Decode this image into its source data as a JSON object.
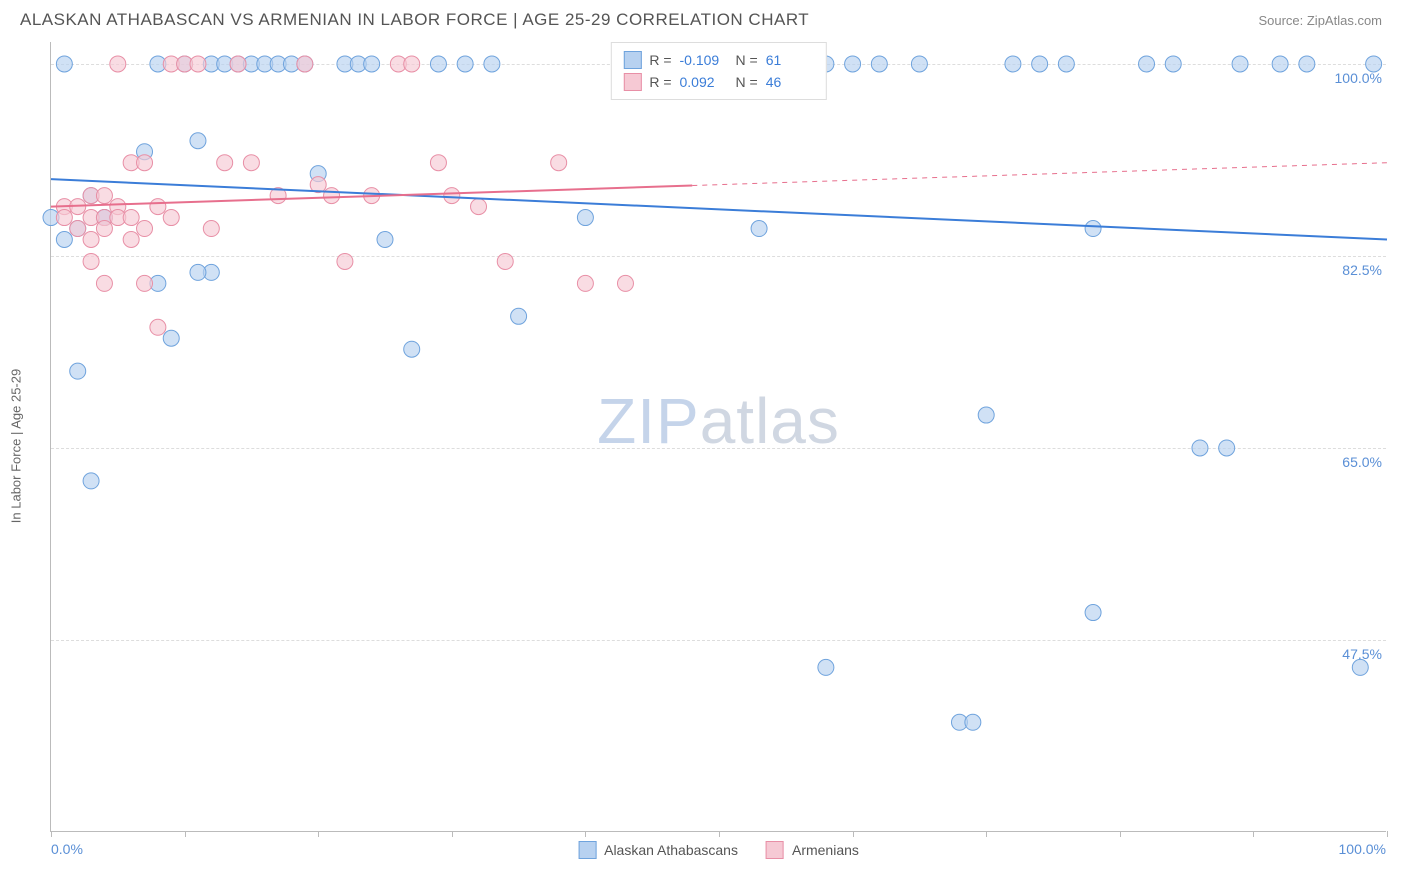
{
  "header": {
    "title": "ALASKAN ATHABASCAN VS ARMENIAN IN LABOR FORCE | AGE 25-29 CORRELATION CHART",
    "source": "Source: ZipAtlas.com"
  },
  "axes": {
    "y_title": "In Labor Force | Age 25-29",
    "x_min_label": "0.0%",
    "x_max_label": "100.0%",
    "xlim": [
      0,
      100
    ],
    "ylim": [
      30,
      102
    ],
    "y_gridlines": [
      47.5,
      65.0,
      82.5,
      100.0
    ],
    "y_grid_labels": [
      "47.5%",
      "65.0%",
      "82.5%",
      "100.0%"
    ],
    "x_ticks": [
      0,
      10,
      20,
      30,
      40,
      50,
      60,
      70,
      80,
      90,
      100
    ]
  },
  "watermark": {
    "pre": "ZIP",
    "post": "atlas"
  },
  "series": [
    {
      "name": "Alaskan Athabascans",
      "color_fill": "#b7d1f0",
      "color_stroke": "#6fa3dd",
      "R": "-0.109",
      "N": "61",
      "trend": {
        "x1": 0,
        "y1": 89.5,
        "x2": 100,
        "y2": 84.0,
        "solid_until": 100
      },
      "points": [
        [
          0,
          86
        ],
        [
          1,
          84
        ],
        [
          2,
          85
        ],
        [
          2,
          72
        ],
        [
          3,
          62
        ],
        [
          4,
          86
        ],
        [
          1,
          100
        ],
        [
          3,
          88
        ],
        [
          4,
          86
        ],
        [
          7,
          92
        ],
        [
          10,
          100
        ],
        [
          12,
          81
        ],
        [
          12,
          100
        ],
        [
          11,
          81
        ],
        [
          11,
          93
        ],
        [
          8,
          100
        ],
        [
          8,
          80
        ],
        [
          9,
          75
        ],
        [
          13,
          100
        ],
        [
          14,
          100
        ],
        [
          15,
          100
        ],
        [
          16,
          100
        ],
        [
          17,
          100
        ],
        [
          18,
          100
        ],
        [
          19,
          100
        ],
        [
          20,
          90
        ],
        [
          22,
          100
        ],
        [
          23,
          100
        ],
        [
          24,
          100
        ],
        [
          25,
          84
        ],
        [
          27,
          74
        ],
        [
          29,
          100
        ],
        [
          31,
          100
        ],
        [
          33,
          100
        ],
        [
          35,
          77
        ],
        [
          40,
          86
        ],
        [
          52,
          100
        ],
        [
          53,
          85
        ],
        [
          56,
          100
        ],
        [
          58,
          100
        ],
        [
          60,
          100
        ],
        [
          58,
          45
        ],
        [
          62,
          100
        ],
        [
          65,
          100
        ],
        [
          68,
          40
        ],
        [
          69,
          40
        ],
        [
          70,
          68
        ],
        [
          72,
          100
        ],
        [
          74,
          100
        ],
        [
          76,
          100
        ],
        [
          78,
          85
        ],
        [
          78,
          50
        ],
        [
          82,
          100
        ],
        [
          84,
          100
        ],
        [
          86,
          65
        ],
        [
          88,
          65
        ],
        [
          89,
          100
        ],
        [
          92,
          100
        ],
        [
          94,
          100
        ],
        [
          98,
          45
        ],
        [
          99,
          100
        ]
      ]
    },
    {
      "name": "Armenians",
      "color_fill": "#f6c9d4",
      "color_stroke": "#e88fa6",
      "R": "0.092",
      "N": "46",
      "trend": {
        "x1": 0,
        "y1": 87.0,
        "x2": 100,
        "y2": 91.0,
        "solid_until": 48
      },
      "points": [
        [
          1,
          87
        ],
        [
          1,
          86
        ],
        [
          2,
          87
        ],
        [
          2,
          85
        ],
        [
          3,
          88
        ],
        [
          3,
          86
        ],
        [
          3,
          84
        ],
        [
          3,
          82
        ],
        [
          4,
          88
        ],
        [
          4,
          86
        ],
        [
          4,
          85
        ],
        [
          4,
          80
        ],
        [
          5,
          87
        ],
        [
          5,
          86
        ],
        [
          5,
          100
        ],
        [
          6,
          91
        ],
        [
          6,
          86
        ],
        [
          6,
          84
        ],
        [
          7,
          91
        ],
        [
          7,
          85
        ],
        [
          7,
          80
        ],
        [
          8,
          87
        ],
        [
          8,
          76
        ],
        [
          9,
          86
        ],
        [
          9,
          100
        ],
        [
          10,
          100
        ],
        [
          11,
          100
        ],
        [
          12,
          85
        ],
        [
          13,
          91
        ],
        [
          14,
          100
        ],
        [
          15,
          91
        ],
        [
          17,
          88
        ],
        [
          19,
          100
        ],
        [
          20,
          89
        ],
        [
          21,
          88
        ],
        [
          22,
          82
        ],
        [
          24,
          88
        ],
        [
          26,
          100
        ],
        [
          27,
          100
        ],
        [
          29,
          91
        ],
        [
          30,
          88
        ],
        [
          32,
          87
        ],
        [
          34,
          82
        ],
        [
          38,
          91
        ],
        [
          40,
          80
        ],
        [
          43,
          80
        ]
      ]
    }
  ],
  "legend_top_labels": {
    "R": "R =",
    "N": "N ="
  },
  "style": {
    "marker_radius": 8,
    "marker_opacity": 0.65,
    "grid_color": "#dddddd",
    "axis_color": "#bbbbbb",
    "trend_width": 2
  }
}
